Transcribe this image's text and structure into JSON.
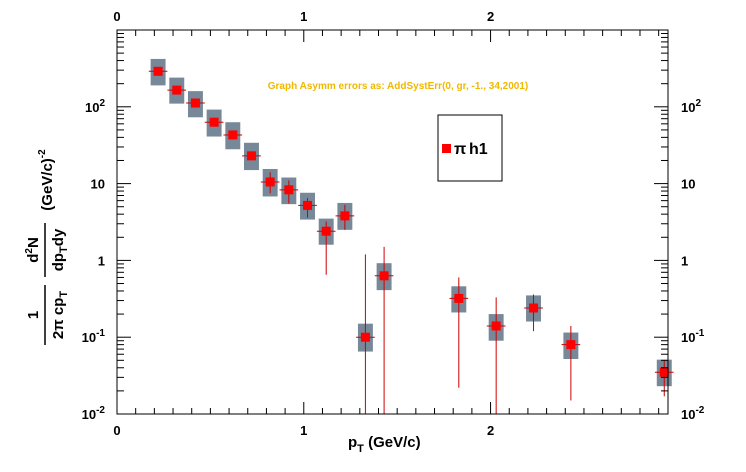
{
  "chart_data": {
    "type": "scatter",
    "xlabel": "p_T (GeV/c)",
    "ylabel": "1/(2π cp_T) d²N/(dp_T dy) (GeV/c)^-2",
    "xlim": [
      0,
      2.95
    ],
    "ylim": [
      0.01,
      1000
    ],
    "yscale": "log",
    "grid": false,
    "legend_position": "top-right",
    "annotation": "Graph Asymm errors as: AddSystErr(0, gr, -1., 34,2001)",
    "annotation_color": "#f0b800",
    "x_ticks": [
      {
        "value": 0,
        "label": "0"
      },
      {
        "value": 1,
        "label": "1"
      },
      {
        "value": 2,
        "label": "2"
      }
    ],
    "y_ticks": [
      {
        "value": 0.01,
        "base": "10",
        "exp": "-2"
      },
      {
        "value": 0.1,
        "base": "10",
        "exp": "-1"
      },
      {
        "value": 1,
        "base": "1",
        "exp": ""
      },
      {
        "value": 10,
        "base": "10",
        "exp": ""
      },
      {
        "value": 100,
        "base": "10",
        "exp": "2"
      }
    ],
    "series": [
      {
        "name": "π h1",
        "marker_color": "#ff0000",
        "error_color": "#cc0000",
        "syst_color": "#778899",
        "points": [
          {
            "x": 0.22,
            "y": 290,
            "stat_lo": 290,
            "stat_hi": 290,
            "syst_lo": 190,
            "syst_hi": 420
          },
          {
            "x": 0.32,
            "y": 165,
            "stat_lo": 165,
            "stat_hi": 165,
            "syst_lo": 110,
            "syst_hi": 240
          },
          {
            "x": 0.42,
            "y": 112,
            "stat_lo": 112,
            "stat_hi": 112,
            "syst_lo": 73,
            "syst_hi": 160
          },
          {
            "x": 0.52,
            "y": 63,
            "stat_lo": 63,
            "stat_hi": 63,
            "syst_lo": 41,
            "syst_hi": 92
          },
          {
            "x": 0.62,
            "y": 43,
            "stat_lo": 43,
            "stat_hi": 43,
            "syst_lo": 28,
            "syst_hi": 63
          },
          {
            "x": 0.72,
            "y": 23,
            "stat_lo": 21,
            "stat_hi": 25,
            "syst_lo": 15,
            "syst_hi": 34
          },
          {
            "x": 0.82,
            "y": 10.5,
            "stat_lo": 7.5,
            "stat_hi": 14,
            "syst_lo": 6.8,
            "syst_hi": 15.5
          },
          {
            "x": 0.92,
            "y": 8.3,
            "stat_lo": 5.5,
            "stat_hi": 11,
            "syst_lo": 5.4,
            "syst_hi": 12
          },
          {
            "x": 1.02,
            "y": 5.2,
            "stat_lo": 3.6,
            "stat_hi": 6.5,
            "syst_lo": 3.4,
            "syst_hi": 7.6
          },
          {
            "x": 1.12,
            "y": 2.4,
            "stat_lo": 0.65,
            "stat_hi": 3.2,
            "syst_lo": 1.6,
            "syst_hi": 3.5
          },
          {
            "x": 1.22,
            "y": 3.8,
            "stat_lo": 2.5,
            "stat_hi": 5.3,
            "syst_lo": 2.5,
            "syst_hi": 5.6
          },
          {
            "x": 1.33,
            "y": 0.1,
            "stat_lo": 0.008,
            "stat_hi": 1.2,
            "syst_lo": 0.065,
            "syst_hi": 0.15
          },
          {
            "x": 1.43,
            "y": 0.63,
            "stat_lo": 0.008,
            "stat_hi": 1.5,
            "syst_lo": 0.41,
            "syst_hi": 0.92
          },
          {
            "x": 1.83,
            "y": 0.32,
            "stat_lo": 0.022,
            "stat_hi": 0.6,
            "syst_lo": 0.21,
            "syst_hi": 0.46
          },
          {
            "x": 2.03,
            "y": 0.14,
            "stat_lo": 0.008,
            "stat_hi": 0.33,
            "syst_lo": 0.09,
            "syst_hi": 0.2
          },
          {
            "x": 2.23,
            "y": 0.24,
            "stat_lo": 0.12,
            "stat_hi": 0.36,
            "syst_lo": 0.16,
            "syst_hi": 0.35
          },
          {
            "x": 2.43,
            "y": 0.08,
            "stat_lo": 0.015,
            "stat_hi": 0.14,
            "syst_lo": 0.052,
            "syst_hi": 0.115
          },
          {
            "x": 2.93,
            "y": 0.035,
            "stat_lo": 0.017,
            "stat_hi": 0.05,
            "syst_lo": 0.023,
            "syst_hi": 0.051
          }
        ]
      }
    ]
  },
  "labels": {
    "ylabel_num_1": "1",
    "ylabel_den_1a": "2π cp",
    "ylabel_den_1b": "T",
    "ylabel_num_2a": "d",
    "ylabel_num_2b": "2",
    "ylabel_num_2c": "N",
    "ylabel_den_2a": "dp",
    "ylabel_den_2b": "T",
    "ylabel_den_2c": "dy",
    "ylabel_units_a": "(GeV/c)",
    "ylabel_units_b": "-2",
    "xlabel_a": "p",
    "xlabel_b": "T",
    "xlabel_c": " (GeV/c)",
    "legend_symbol": "π",
    "legend_text": "h1"
  }
}
